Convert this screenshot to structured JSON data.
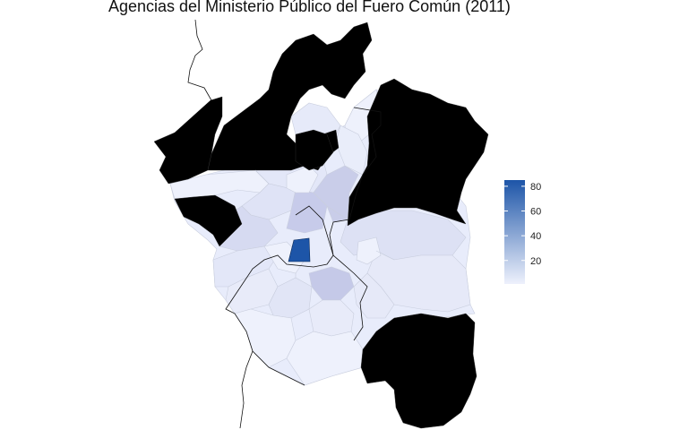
{
  "title": "Agencias del Ministerio Público del Fuero Común (2011)",
  "colors": {
    "no_data": "#000000",
    "low": "#eef1fc",
    "high": "#1d55a8",
    "region_border": "#c9cede",
    "outline": "#111111"
  },
  "legend": {
    "min": 1,
    "max": 85,
    "ticks": [
      {
        "value": 80,
        "label": "80"
      },
      {
        "value": 60,
        "label": "60"
      },
      {
        "value": 40,
        "label": "40"
      },
      {
        "value": 20,
        "label": "20"
      }
    ]
  },
  "map": {
    "fill_legend": {
      "no_data": "black regions (northern fringe, east and south-east)",
      "scale": "light blue (low) to dark blue (high)"
    }
  }
}
